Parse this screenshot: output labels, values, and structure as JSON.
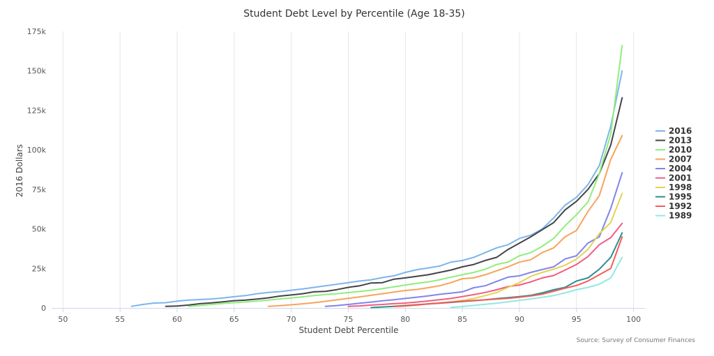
{
  "chart_data": {
    "type": "line",
    "title": "Student Debt Level by Percentile (Age 18-35)",
    "xlabel": "Student Debt Percentile",
    "ylabel": "2016 Dollars",
    "source": "Source: Survey of Consumer Finances",
    "xlim": [
      49,
      101
    ],
    "ylim": [
      0,
      175000
    ],
    "x_ticks": [
      50,
      55,
      60,
      65,
      70,
      75,
      80,
      85,
      90,
      95,
      100
    ],
    "y_ticks": [
      0,
      25000,
      50000,
      75000,
      100000,
      125000,
      150000,
      175000
    ],
    "y_tick_labels": [
      "0",
      "25k",
      "50k",
      "75k",
      "100k",
      "125k",
      "150k",
      "175k"
    ],
    "grid": "vertical",
    "legend_position": "right",
    "series": [
      {
        "name": "2016",
        "color": "#7cb5ec",
        "points": [
          [
            56,
            1000
          ],
          [
            57,
            2200
          ],
          [
            58,
            3100
          ],
          [
            59,
            3300
          ],
          [
            60,
            4300
          ],
          [
            61,
            5000
          ],
          [
            62,
            5300
          ],
          [
            63,
            5700
          ],
          [
            64,
            6300
          ],
          [
            65,
            7100
          ],
          [
            66,
            7800
          ],
          [
            67,
            9000
          ],
          [
            68,
            9800
          ],
          [
            69,
            10300
          ],
          [
            70,
            11200
          ],
          [
            71,
            12000
          ],
          [
            72,
            13000
          ],
          [
            73,
            14000
          ],
          [
            74,
            15000
          ],
          [
            75,
            16000
          ],
          [
            76,
            17000
          ],
          [
            77,
            17800
          ],
          [
            78,
            19200
          ],
          [
            79,
            20300
          ],
          [
            80,
            22500
          ],
          [
            81,
            24200
          ],
          [
            82,
            25300
          ],
          [
            83,
            26500
          ],
          [
            84,
            29000
          ],
          [
            85,
            30000
          ],
          [
            86,
            32000
          ],
          [
            87,
            35000
          ],
          [
            88,
            38000
          ],
          [
            89,
            40000
          ],
          [
            90,
            44000
          ],
          [
            91,
            46000
          ],
          [
            92,
            50000
          ],
          [
            93,
            57000
          ],
          [
            94,
            65000
          ],
          [
            95,
            70000
          ],
          [
            96,
            78000
          ],
          [
            97,
            90000
          ],
          [
            98,
            115000
          ],
          [
            99,
            150000
          ]
        ]
      },
      {
        "name": "2013",
        "color": "#434348",
        "points": [
          [
            59,
            1000
          ],
          [
            60,
            1200
          ],
          [
            61,
            1800
          ],
          [
            62,
            2700
          ],
          [
            63,
            3200
          ],
          [
            64,
            3900
          ],
          [
            65,
            4600
          ],
          [
            66,
            5000
          ],
          [
            67,
            5600
          ],
          [
            68,
            6400
          ],
          [
            69,
            7500
          ],
          [
            70,
            8200
          ],
          [
            71,
            9000
          ],
          [
            72,
            10200
          ],
          [
            73,
            10500
          ],
          [
            74,
            11600
          ],
          [
            75,
            13000
          ],
          [
            76,
            14000
          ],
          [
            77,
            15800
          ],
          [
            78,
            16000
          ],
          [
            79,
            18200
          ],
          [
            80,
            19000
          ],
          [
            81,
            20000
          ],
          [
            82,
            21000
          ],
          [
            83,
            22500
          ],
          [
            84,
            24000
          ],
          [
            85,
            26000
          ],
          [
            86,
            27500
          ],
          [
            87,
            30000
          ],
          [
            88,
            32000
          ],
          [
            89,
            37000
          ],
          [
            90,
            41000
          ],
          [
            91,
            45000
          ],
          [
            92,
            49500
          ],
          [
            93,
            54000
          ],
          [
            94,
            62000
          ],
          [
            95,
            67500
          ],
          [
            96,
            75000
          ],
          [
            97,
            85000
          ],
          [
            98,
            103000
          ],
          [
            99,
            133000
          ]
        ]
      },
      {
        "name": "2010",
        "color": "#90ed7d",
        "points": [
          [
            61,
            1000
          ],
          [
            62,
            1500
          ],
          [
            63,
            2200
          ],
          [
            64,
            2800
          ],
          [
            65,
            3300
          ],
          [
            66,
            3800
          ],
          [
            67,
            4300
          ],
          [
            68,
            5000
          ],
          [
            69,
            5700
          ],
          [
            70,
            6300
          ],
          [
            71,
            7000
          ],
          [
            72,
            7800
          ],
          [
            73,
            8500
          ],
          [
            74,
            9000
          ],
          [
            75,
            9700
          ],
          [
            76,
            10500
          ],
          [
            77,
            11200
          ],
          [
            78,
            12200
          ],
          [
            79,
            13300
          ],
          [
            80,
            14500
          ],
          [
            81,
            15500
          ],
          [
            82,
            16500
          ],
          [
            83,
            17800
          ],
          [
            84,
            19500
          ],
          [
            85,
            21000
          ],
          [
            86,
            22500
          ],
          [
            87,
            24500
          ],
          [
            88,
            27500
          ],
          [
            89,
            29000
          ],
          [
            90,
            33000
          ],
          [
            91,
            35000
          ],
          [
            92,
            39000
          ],
          [
            93,
            44000
          ],
          [
            94,
            52000
          ],
          [
            95,
            59000
          ],
          [
            96,
            67000
          ],
          [
            97,
            85000
          ],
          [
            98,
            110000
          ],
          [
            99,
            166000
          ]
        ]
      },
      {
        "name": "2007",
        "color": "#f7a35c",
        "points": [
          [
            68,
            1000
          ],
          [
            69,
            1400
          ],
          [
            70,
            2000
          ],
          [
            71,
            2600
          ],
          [
            72,
            3300
          ],
          [
            73,
            4200
          ],
          [
            74,
            5100
          ],
          [
            75,
            6100
          ],
          [
            76,
            7000
          ],
          [
            77,
            8000
          ],
          [
            78,
            9000
          ],
          [
            79,
            10000
          ],
          [
            80,
            11000
          ],
          [
            81,
            11700
          ],
          [
            82,
            12800
          ],
          [
            83,
            14000
          ],
          [
            84,
            16000
          ],
          [
            85,
            18500
          ],
          [
            86,
            19000
          ],
          [
            87,
            21000
          ],
          [
            88,
            23500
          ],
          [
            89,
            26000
          ],
          [
            90,
            29000
          ],
          [
            91,
            30500
          ],
          [
            92,
            35000
          ],
          [
            93,
            38000
          ],
          [
            94,
            45000
          ],
          [
            95,
            49000
          ],
          [
            96,
            61000
          ],
          [
            97,
            71000
          ],
          [
            98,
            94000
          ],
          [
            99,
            109000
          ]
        ]
      },
      {
        "name": "2004",
        "color": "#8085e9",
        "points": [
          [
            73,
            1000
          ],
          [
            74,
            1500
          ],
          [
            75,
            2200
          ],
          [
            76,
            3000
          ],
          [
            77,
            3700
          ],
          [
            78,
            4500
          ],
          [
            79,
            5200
          ],
          [
            80,
            6000
          ],
          [
            81,
            6800
          ],
          [
            82,
            7600
          ],
          [
            83,
            8600
          ],
          [
            84,
            9400
          ],
          [
            85,
            10200
          ],
          [
            86,
            12800
          ],
          [
            87,
            14000
          ],
          [
            88,
            16800
          ],
          [
            89,
            19500
          ],
          [
            90,
            20300
          ],
          [
            91,
            22500
          ],
          [
            92,
            24300
          ],
          [
            93,
            26000
          ],
          [
            94,
            31000
          ],
          [
            95,
            33000
          ],
          [
            96,
            41000
          ],
          [
            97,
            45000
          ],
          [
            98,
            63000
          ],
          [
            99,
            85500
          ]
        ]
      },
      {
        "name": "2001",
        "color": "#f15c80",
        "points": [
          [
            75,
            1000
          ],
          [
            76,
            1300
          ],
          [
            77,
            1800
          ],
          [
            78,
            2200
          ],
          [
            79,
            2700
          ],
          [
            80,
            3100
          ],
          [
            81,
            3700
          ],
          [
            82,
            4400
          ],
          [
            83,
            5200
          ],
          [
            84,
            6000
          ],
          [
            85,
            7200
          ],
          [
            86,
            8400
          ],
          [
            87,
            9800
          ],
          [
            88,
            11500
          ],
          [
            89,
            13500
          ],
          [
            90,
            14500
          ],
          [
            91,
            16500
          ],
          [
            92,
            19000
          ],
          [
            93,
            20500
          ],
          [
            94,
            24000
          ],
          [
            95,
            27500
          ],
          [
            96,
            32500
          ],
          [
            97,
            40000
          ],
          [
            98,
            44500
          ],
          [
            99,
            53500
          ]
        ]
      },
      {
        "name": "1998",
        "color": "#e4d354",
        "points": [
          [
            79,
            1200
          ],
          [
            80,
            1600
          ],
          [
            81,
            2100
          ],
          [
            82,
            2600
          ],
          [
            83,
            3200
          ],
          [
            84,
            3900
          ],
          [
            85,
            4700
          ],
          [
            86,
            6000
          ],
          [
            87,
            7800
          ],
          [
            88,
            9800
          ],
          [
            89,
            13000
          ],
          [
            90,
            16000
          ],
          [
            91,
            20000
          ],
          [
            92,
            22500
          ],
          [
            93,
            24500
          ],
          [
            94,
            27000
          ],
          [
            95,
            31000
          ],
          [
            96,
            37000
          ],
          [
            97,
            47000
          ],
          [
            98,
            54000
          ],
          [
            99,
            72500
          ]
        ]
      },
      {
        "name": "1995",
        "color": "#2b908f",
        "points": [
          [
            77,
            200
          ],
          [
            78,
            600
          ],
          [
            79,
            1000
          ],
          [
            80,
            1500
          ],
          [
            81,
            2000
          ],
          [
            82,
            2500
          ],
          [
            83,
            3000
          ],
          [
            84,
            3500
          ],
          [
            85,
            4100
          ],
          [
            86,
            4600
          ],
          [
            87,
            5100
          ],
          [
            88,
            5900
          ],
          [
            89,
            6500
          ],
          [
            90,
            7200
          ],
          [
            91,
            8000
          ],
          [
            92,
            9500
          ],
          [
            93,
            11500
          ],
          [
            94,
            13000
          ],
          [
            95,
            17000
          ],
          [
            96,
            19000
          ],
          [
            97,
            24500
          ],
          [
            98,
            32000
          ],
          [
            99,
            47500
          ]
        ]
      },
      {
        "name": "1992",
        "color": "#f45b5b",
        "points": [
          [
            79,
            900
          ],
          [
            80,
            1300
          ],
          [
            81,
            1800
          ],
          [
            82,
            2500
          ],
          [
            83,
            3100
          ],
          [
            84,
            3700
          ],
          [
            85,
            4300
          ],
          [
            86,
            4700
          ],
          [
            87,
            5100
          ],
          [
            88,
            5600
          ],
          [
            89,
            6100
          ],
          [
            90,
            6800
          ],
          [
            91,
            7600
          ],
          [
            92,
            8700
          ],
          [
            93,
            10600
          ],
          [
            94,
            12500
          ],
          [
            95,
            14200
          ],
          [
            96,
            17000
          ],
          [
            97,
            21000
          ],
          [
            98,
            25000
          ],
          [
            99,
            45000
          ]
        ]
      },
      {
        "name": "1989",
        "color": "#91e8e1",
        "points": [
          [
            84,
            300
          ],
          [
            85,
            900
          ],
          [
            86,
            1600
          ],
          [
            87,
            2300
          ],
          [
            88,
            3000
          ],
          [
            89,
            3900
          ],
          [
            90,
            4800
          ],
          [
            91,
            5700
          ],
          [
            92,
            6700
          ],
          [
            93,
            7800
          ],
          [
            94,
            9500
          ],
          [
            95,
            11500
          ],
          [
            96,
            13000
          ],
          [
            97,
            15000
          ],
          [
            98,
            19000
          ],
          [
            99,
            32000
          ]
        ]
      }
    ]
  }
}
